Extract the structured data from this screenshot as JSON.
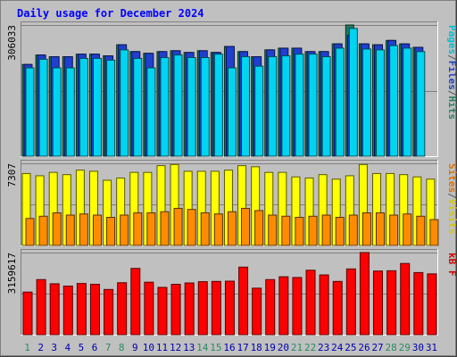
{
  "chart_data": {
    "type": "bar",
    "title": "Daily usage for December 2024",
    "days": [
      "1",
      "2",
      "3",
      "4",
      "5",
      "6",
      "7",
      "8",
      "9",
      "10",
      "11",
      "12",
      "13",
      "14",
      "15",
      "16",
      "17",
      "18",
      "19",
      "20",
      "21",
      "22",
      "23",
      "24",
      "25",
      "26",
      "27",
      "28",
      "29",
      "30",
      "31"
    ],
    "weekend_days": [
      "1",
      "7",
      "8",
      "14",
      "15",
      "21",
      "22",
      "28",
      "29"
    ],
    "panels": [
      {
        "name": "hits-files-pages",
        "ymax_label": "306033",
        "ymax": 306033,
        "side_label": [
          "Pages",
          "/",
          "Files",
          "/",
          "Hits"
        ],
        "side_label_colors": [
          "#00c0d0",
          "#555555",
          "#2040c0",
          "#555555",
          "#2a8060"
        ],
        "series": [
          {
            "name": "Hits",
            "color": "#1f7a5c",
            "values": [
              214000,
              236000,
              232000,
              232000,
              238000,
              238000,
              234000,
              260000,
              244000,
              240000,
              244000,
              246000,
              242000,
              246000,
              242000,
              256000,
              244000,
              232000,
              248000,
              252000,
              252000,
              244000,
              244000,
              262000,
              306000,
              262000,
              260000,
              270000,
              262000,
              254000,
              0
            ]
          },
          {
            "name": "Files",
            "color": "#1f3fd0",
            "values": [
              214000,
              236000,
              232000,
              232000,
              238000,
              238000,
              234000,
              260000,
              244000,
              240000,
              244000,
              246000,
              242000,
              246000,
              242000,
              256000,
              244000,
              232000,
              248000,
              252000,
              252000,
              244000,
              244000,
              262000,
              282000,
              262000,
              260000,
              270000,
              262000,
              254000,
              0
            ]
          },
          {
            "name": "Pages",
            "color": "#00d4f0",
            "values": [
              206000,
              226000,
              206000,
              206000,
              228000,
              228000,
              224000,
              248000,
              228000,
              206000,
              230000,
              236000,
              230000,
              230000,
              238000,
              206000,
              232000,
              210000,
              232000,
              234000,
              238000,
              238000,
              232000,
              252000,
              298000,
              250000,
              248000,
              258000,
              252000,
              244000,
              0
            ]
          }
        ]
      },
      {
        "name": "visits-sites",
        "ymax_label": "7307",
        "ymax": 7307,
        "side_label": [
          "Sites",
          "/",
          "Visits"
        ],
        "side_label_colors": [
          "#e07000",
          "#555555",
          "#d4c800"
        ],
        "series": [
          {
            "name": "Visits",
            "color": "#ffff00",
            "values": [
              6400,
              6200,
              6500,
              6300,
              6700,
              6600,
              5800,
              6000,
              6500,
              6500,
              7100,
              7200,
              6600,
              6600,
              6600,
              6700,
              7100,
              7000,
              6500,
              6500,
              6100,
              6000,
              6300,
              5900,
              6200,
              7200,
              6400,
              6400,
              6300,
              6100,
              5900
            ]
          },
          {
            "name": "Sites",
            "color": "#ff8c00",
            "values": [
              2400,
              2600,
              2900,
              2700,
              2800,
              2700,
              2500,
              2700,
              2900,
              2900,
              3000,
              3300,
              3200,
              2900,
              2800,
              3000,
              3300,
              3100,
              2700,
              2600,
              2500,
              2600,
              2700,
              2500,
              2700,
              2900,
              2900,
              2700,
              2800,
              2600,
              2300
            ]
          }
        ]
      },
      {
        "name": "kbytes",
        "ymax_label": "3159617",
        "ymax": 3159617,
        "side_label": [
          "kB F"
        ],
        "side_label_colors": [
          "#d00000"
        ],
        "series": [
          {
            "name": "kB F",
            "color": "#ff0000",
            "values": [
              1640000,
              2120000,
              1960000,
              1870000,
              1970000,
              1940000,
              1740000,
              2000000,
              2550000,
              2020000,
              1820000,
              1940000,
              1990000,
              2040000,
              2050000,
              2060000,
              2600000,
              1790000,
              2120000,
              2230000,
              2200000,
              2480000,
              2300000,
              2050000,
              2530000,
              3159617,
              2450000,
              2460000,
              2740000,
              2390000,
              2340000
            ]
          }
        ]
      }
    ]
  },
  "colors": {
    "background": "#c0c0c0",
    "title": "#0000ff",
    "weekday_label": "#0000b0",
    "weekend_label": "#2a8a60"
  }
}
